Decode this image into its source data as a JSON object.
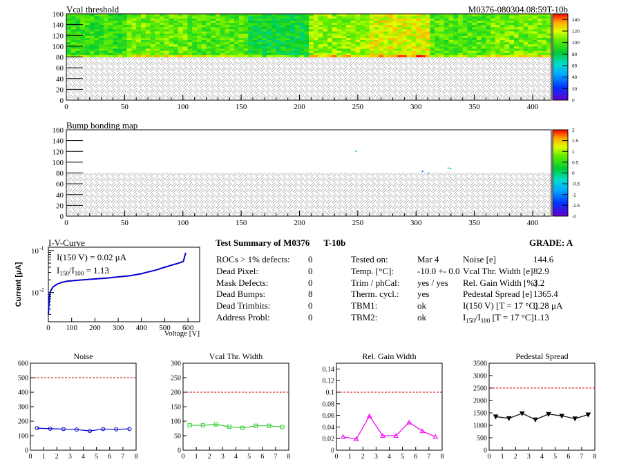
{
  "module_id": "M0376-080304.08:59T-10b",
  "vcal_map": {
    "title": "Vcal threshold",
    "x_ticks": [
      "0",
      "50",
      "100",
      "150",
      "200",
      "250",
      "300",
      "350",
      "400"
    ],
    "y_ticks": [
      "0",
      "20",
      "40",
      "60",
      "80",
      "100",
      "120",
      "140",
      "160"
    ],
    "xlim": [
      0,
      416
    ],
    "ylim": [
      0,
      160
    ],
    "filled_rows": [
      80,
      160
    ],
    "color_scale_ticks": [
      "0",
      "20",
      "40",
      "60",
      "80",
      "100",
      "120",
      "140"
    ],
    "color_scale_range": [
      0,
      150
    ],
    "roc_columns": [
      {
        "x": [
          0,
          52
        ],
        "level": 95
      },
      {
        "x": [
          52,
          104
        ],
        "level": 105
      },
      {
        "x": [
          104,
          156
        ],
        "level": 100
      },
      {
        "x": [
          156,
          208
        ],
        "level": 85
      },
      {
        "x": [
          208,
          260
        ],
        "level": 110
      },
      {
        "x": [
          260,
          312
        ],
        "level": 120
      },
      {
        "x": [
          312,
          364
        ],
        "level": 100
      },
      {
        "x": [
          364,
          416
        ],
        "level": 105
      }
    ]
  },
  "bump_map": {
    "title": "Bump bonding map",
    "x_ticks": [
      "0",
      "50",
      "100",
      "150",
      "200",
      "250",
      "300",
      "350",
      "400"
    ],
    "y_ticks": [
      "0",
      "20",
      "40",
      "60",
      "80",
      "100",
      "120",
      "140",
      "160"
    ],
    "xlim": [
      0,
      416
    ],
    "ylim": [
      0,
      160
    ],
    "color_scale_ticks": [
      "-2",
      "-1.5",
      "-1",
      "-0.5",
      "0",
      "0.5",
      "1",
      "1.5",
      "2"
    ],
    "color_scale_range": [
      -2,
      2
    ],
    "points": [
      {
        "x": 248,
        "y": 120,
        "v": 0.2
      },
      {
        "x": 305,
        "y": 83,
        "v": -1.2
      },
      {
        "x": 310,
        "y": 80,
        "v": -0.2
      },
      {
        "x": 327,
        "y": 89,
        "v": -0.1
      },
      {
        "x": 329,
        "y": 88,
        "v": 0.1
      }
    ]
  },
  "iv_curve": {
    "title": "I-V-Curve",
    "ylabel": "Current [μA]",
    "xlabel": "Voltage [V]",
    "note1": "I(150 V) = 0.02 μA",
    "note2_lhs": "I",
    "note2_sub1": "150",
    "note2_mid": "/I",
    "note2_sub2": "100",
    "note2_rhs": " = 1.13",
    "x_ticks": [
      "0",
      "100",
      "200",
      "300",
      "400",
      "500",
      "600"
    ],
    "y_ticks": [
      "10",
      "10"
    ],
    "y_tick_exps": [
      "-2",
      "-1"
    ],
    "xlim": [
      0,
      650
    ],
    "ylim": [
      0.002,
      0.12
    ],
    "points": [
      [
        0,
        0.003
      ],
      [
        3,
        0.006
      ],
      [
        6,
        0.009
      ],
      [
        10,
        0.011
      ],
      [
        20,
        0.0135
      ],
      [
        40,
        0.016
      ],
      [
        60,
        0.0175
      ],
      [
        80,
        0.0185
      ],
      [
        100,
        0.019
      ],
      [
        150,
        0.02
      ],
      [
        200,
        0.021
      ],
      [
        250,
        0.022
      ],
      [
        300,
        0.0235
      ],
      [
        350,
        0.025
      ],
      [
        400,
        0.028
      ],
      [
        430,
        0.031
      ],
      [
        460,
        0.034
      ],
      [
        500,
        0.04
      ],
      [
        530,
        0.045
      ],
      [
        560,
        0.05
      ],
      [
        580,
        0.055
      ],
      [
        585,
        0.07
      ],
      [
        590,
        0.088
      ]
    ]
  },
  "summary": {
    "title": "Test Summary of M0376",
    "module_type": "T-10b",
    "grade_label": "GRADE:",
    "grade": "A",
    "left": [
      {
        "label": "ROCs > 1% defects:",
        "value": "0"
      },
      {
        "label": "Dead Pixel:",
        "value": "0"
      },
      {
        "label": "Mask Defects:",
        "value": "0"
      },
      {
        "label": "Dead Bumps:",
        "value": "8"
      },
      {
        "label": "Dead Trimbits:",
        "value": "0"
      },
      {
        "label": "Address Probl:",
        "value": "0"
      }
    ],
    "middle": [
      {
        "label": "Tested on:",
        "value": "Mar 4"
      },
      {
        "label": "Temp. [°C]:",
        "value": "-10.0 +- 0.0"
      },
      {
        "label": "Trim / phCal:",
        "value": "yes / yes"
      },
      {
        "label": "Therm. cycl.:",
        "value": "yes"
      },
      {
        "label": "TBM1:",
        "value": "ok"
      },
      {
        "label": "TBM2:",
        "value": "ok"
      }
    ],
    "right": [
      {
        "label": "Noise [e]",
        "value": "144.6"
      },
      {
        "label": "Vcal Thr. Width [e]",
        "value": "82.9"
      },
      {
        "label": "Rel. Gain Width [%]",
        "value": "3.2"
      },
      {
        "label": "Pedestal Spread [e]",
        "value": "1365.4"
      },
      {
        "label": "I(150 V) [T = 17 °C]",
        "value": "0.28 μA"
      }
    ],
    "ratio_row": {
      "lhs": "I",
      "sub1": "150",
      "mid": "/I",
      "sub2": "100",
      "rhs": "  [T = 17 °C]",
      "value": "1.13"
    }
  },
  "chart_data": [
    {
      "type": "line",
      "title": "Noise",
      "x_ticks": [
        "0",
        "1",
        "2",
        "3",
        "4",
        "5",
        "6",
        "7",
        "8"
      ],
      "y_ticks": [
        "0",
        "100",
        "200",
        "300",
        "400",
        "500",
        "600"
      ],
      "xlim": [
        0,
        8
      ],
      "ylim": [
        0,
        600
      ],
      "threshold": 500,
      "color": "#0000cc",
      "marker": "circle",
      "x": [
        0.5,
        1.5,
        2.5,
        3.5,
        4.5,
        5.5,
        6.5,
        7.5
      ],
      "values": [
        152,
        148,
        146,
        142,
        133,
        146,
        144,
        147
      ]
    },
    {
      "type": "line",
      "title": "Vcal Thr. Width",
      "x_ticks": [
        "0",
        "1",
        "2",
        "3",
        "4",
        "5",
        "6",
        "7",
        "8"
      ],
      "y_ticks": [
        "0",
        "50",
        "100",
        "150",
        "200",
        "250",
        "300"
      ],
      "xlim": [
        0,
        8
      ],
      "ylim": [
        0,
        300
      ],
      "threshold": 200,
      "color": "#33cc33",
      "marker": "square",
      "x": [
        0.5,
        1.5,
        2.5,
        3.5,
        4.5,
        5.5,
        6.5,
        7.5
      ],
      "values": [
        86,
        86,
        89,
        81,
        77,
        84,
        84,
        80
      ]
    },
    {
      "type": "line",
      "title": "Rel. Gain Width",
      "x_ticks": [
        "0",
        "1",
        "2",
        "3",
        "4",
        "5",
        "6",
        "7",
        "8"
      ],
      "y_ticks": [
        "0",
        "0.02",
        "0.04",
        "0.06",
        "0.08",
        "0.1",
        "0.12",
        "0.14"
      ],
      "xlim": [
        0,
        8
      ],
      "ylim": [
        0,
        0.15
      ],
      "threshold": 0.1,
      "color": "#ee00ee",
      "marker": "triangle",
      "x": [
        0.5,
        1.5,
        2.5,
        3.5,
        4.5,
        5.5,
        6.5,
        7.5
      ],
      "values": [
        0.023,
        0.019,
        0.059,
        0.025,
        0.025,
        0.048,
        0.033,
        0.023
      ]
    },
    {
      "type": "line",
      "title": "Pedestal Spread",
      "x_ticks": [
        "0",
        "1",
        "2",
        "3",
        "4",
        "5",
        "6",
        "7",
        "8"
      ],
      "y_ticks": [
        "0",
        "500",
        "1000",
        "1500",
        "2000",
        "2500",
        "3000",
        "3500"
      ],
      "xlim": [
        0,
        8
      ],
      "ylim": [
        0,
        3500
      ],
      "threshold": 2500,
      "color": "#000000",
      "marker": "triangle-down",
      "x": [
        0.5,
        1.5,
        2.5,
        3.5,
        4.5,
        5.5,
        6.5,
        7.5
      ],
      "values": [
        1350,
        1280,
        1480,
        1230,
        1450,
        1380,
        1270,
        1430
      ]
    }
  ]
}
